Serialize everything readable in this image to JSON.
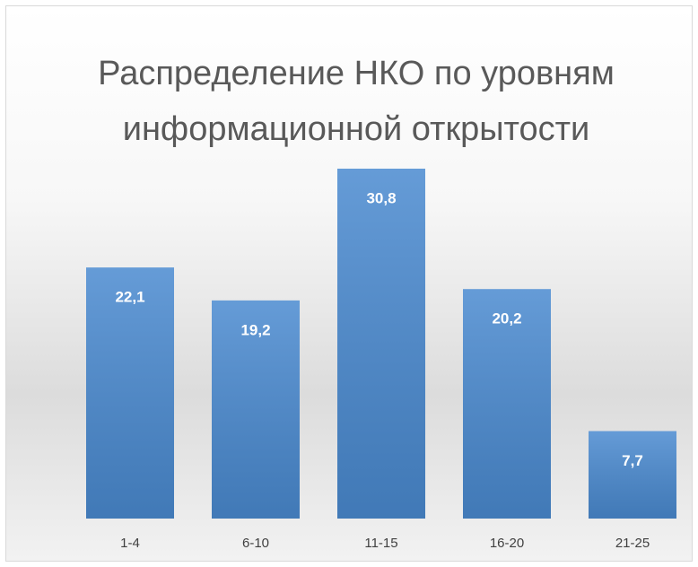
{
  "chart_data": {
    "type": "bar",
    "title": "Распределение НКО по уровням информационной открытости",
    "categories": [
      "1-4",
      "6-10",
      "11-15",
      "16-20",
      "21-25"
    ],
    "values": [
      22.1,
      19.2,
      30.8,
      20.2,
      7.7
    ],
    "value_labels": [
      "22,1",
      "19,2",
      "30,8",
      "20,2",
      "7,7"
    ],
    "color": "#4a8ad0"
  }
}
